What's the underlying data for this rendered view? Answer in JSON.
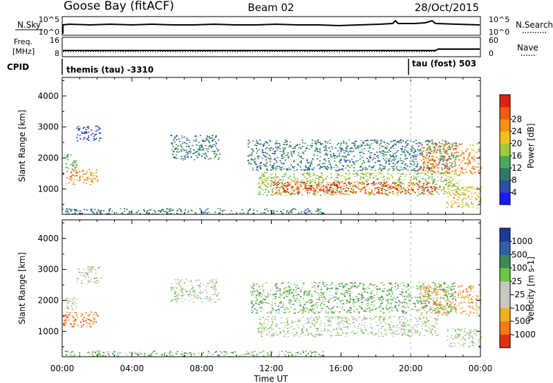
{
  "header": {
    "station": "Goose Bay (fitACF)",
    "beam": "Beam 02",
    "date": "28/Oct/2015"
  },
  "param_panels": {
    "nsky": {
      "left_label": "N.Sky",
      "right_label": "N.Search",
      "left_ticks": [
        "10^5",
        "10^0"
      ],
      "right_ticks": [
        "10^5",
        "10^0"
      ]
    },
    "freq": {
      "left_label_1": "Freq.",
      "left_label_2": "[MHz]",
      "right_label": "Nave",
      "left_ticks": [
        "16",
        "8"
      ],
      "right_ticks": [
        "60",
        "0"
      ]
    },
    "cpid": {
      "label": "CPID",
      "segments": [
        {
          "text": "themis (tau) -3310",
          "start_hour": 0
        },
        {
          "text": "tau (fost) 503",
          "start_hour": 20
        }
      ]
    }
  },
  "time_axis": {
    "title": "Time UT",
    "tick_labels": [
      "00:00",
      "04:00",
      "08:00",
      "12:00",
      "16:00",
      "20:00",
      "00:00"
    ],
    "hours": [
      0,
      4,
      8,
      12,
      16,
      20,
      24
    ],
    "range_hours": [
      0,
      24
    ]
  },
  "chart_data": [
    {
      "type": "heatmap",
      "name": "power",
      "ylabel": "Slant Range [km]",
      "ylim": [
        180,
        4600
      ],
      "yticks": [
        1000,
        2000,
        3000,
        4000
      ],
      "xlim": [
        0,
        24
      ],
      "colorbar_label": "Power [dB]",
      "colorbar_ticks": [
        "4",
        "8",
        "12",
        "16",
        "20",
        "24",
        "28"
      ],
      "colorbar_colors": [
        "#1a1aff",
        "#2b4fa8",
        "#2e7a6a",
        "#4aaa5c",
        "#9fcc3c",
        "#f0c020",
        "#f39018",
        "#f05a14",
        "#e02010"
      ],
      "regions": [
        {
          "t": [
            0.0,
            2.0
          ],
          "r": [
            1150,
            1650
          ],
          "level": 6
        },
        {
          "t": [
            0.1,
            0.8
          ],
          "r": [
            1600,
            2150
          ],
          "level": 3
        },
        {
          "t": [
            0.8,
            2.2
          ],
          "r": [
            2550,
            3050
          ],
          "level": 1
        },
        {
          "t": [
            6.2,
            9.0
          ],
          "r": [
            1950,
            2750
          ],
          "level": 2
        },
        {
          "t": [
            10.6,
            22.6
          ],
          "r": [
            1600,
            2600
          ],
          "level": 2
        },
        {
          "t": [
            11.2,
            22.8
          ],
          "r": [
            800,
            1550
          ],
          "level": 4
        },
        {
          "t": [
            12.0,
            21.5
          ],
          "r": [
            850,
            1250
          ],
          "level": 8
        },
        {
          "t": [
            20.5,
            24.0
          ],
          "r": [
            1500,
            2500
          ],
          "level": 6
        },
        {
          "t": [
            22.0,
            24.0
          ],
          "r": [
            400,
            1100
          ],
          "level": 5
        },
        {
          "t": [
            0.0,
            15.0
          ],
          "r": [
            200,
            380
          ],
          "level": 2
        }
      ]
    },
    {
      "type": "heatmap",
      "name": "velocity",
      "ylabel": "Slant Range [km]",
      "ylim": [
        180,
        4600
      ],
      "yticks": [
        1000,
        2000,
        3000,
        4000
      ],
      "xlim": [
        0,
        24
      ],
      "colorbar_label": "Velocity [m s-1]",
      "colorbar_ticks": [
        "1000",
        "500",
        "100",
        "25",
        "-25",
        "-100",
        "-500",
        "-1000"
      ],
      "colorbar_colors": [
        "#1a3a9a",
        "#2e5faa",
        "#3a8a5a",
        "#6ac840",
        "#c8c8c0",
        "#c8c8c0",
        "#f0b020",
        "#f07a18",
        "#e03010"
      ],
      "regions": [
        {
          "t": [
            0.0,
            2.0
          ],
          "r": [
            1150,
            1650
          ],
          "level": 7
        },
        {
          "t": [
            0.2,
            0.8
          ],
          "r": [
            1650,
            2150
          ],
          "level": 4
        },
        {
          "t": [
            0.8,
            2.2
          ],
          "r": [
            2550,
            3100
          ],
          "level": 4
        },
        {
          "t": [
            6.2,
            9.0
          ],
          "r": [
            1950,
            2700
          ],
          "level": 4
        },
        {
          "t": [
            10.8,
            22.6
          ],
          "r": [
            1600,
            2600
          ],
          "level": 3
        },
        {
          "t": [
            11.2,
            21.5
          ],
          "r": [
            850,
            1500
          ],
          "level": 4
        },
        {
          "t": [
            20.5,
            24.0
          ],
          "r": [
            1500,
            2500
          ],
          "level": 6
        },
        {
          "t": [
            22.0,
            24.0
          ],
          "r": [
            500,
            1100
          ],
          "level": 4
        },
        {
          "t": [
            0.0,
            15.0
          ],
          "r": [
            200,
            380
          ],
          "level": 3
        }
      ]
    }
  ]
}
